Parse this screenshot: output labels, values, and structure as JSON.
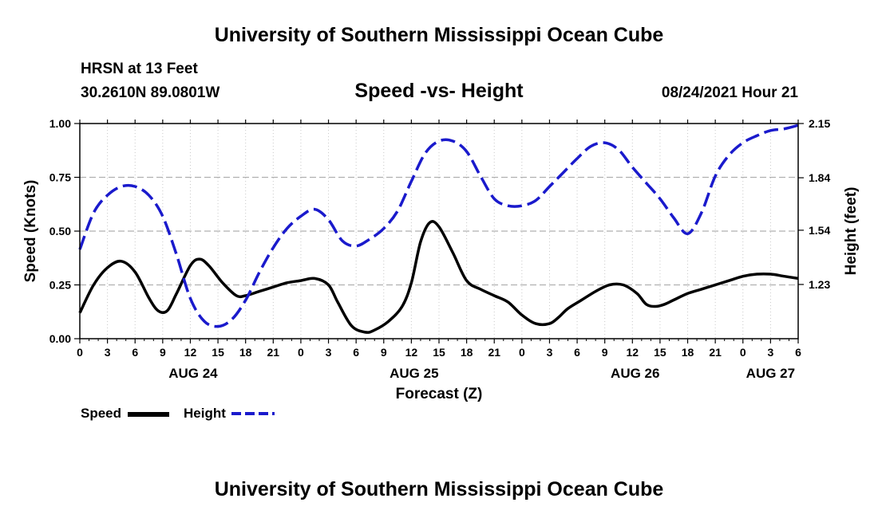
{
  "header": {
    "title_top": "University of Southern Mississippi Ocean Cube",
    "station": "HRSN at 13 Feet",
    "coords": "30.2610N  89.0801W",
    "date": "08/24/2021 Hour 21",
    "title_bottom": "University of Southern Mississippi Ocean Cube"
  },
  "legend": {
    "speed_label": "Speed",
    "height_label": "Height"
  },
  "colors": {
    "speed": "#000000",
    "height": "#1a1acc",
    "grid": "#b0b0b0"
  },
  "chart_data": {
    "type": "line",
    "title": "Speed -vs- Height",
    "xlabel": "Forecast (Z)",
    "ylabel": "Speed (Knots)",
    "ylabel_right": "Height (feet)",
    "xlim": [
      0,
      78
    ],
    "ylim": [
      0,
      1
    ],
    "ylim_right": [
      0.92,
      2.15
    ],
    "x_ticks": [
      0,
      3,
      6,
      9,
      12,
      15,
      18,
      21,
      24,
      27,
      30,
      33,
      36,
      39,
      42,
      45,
      48,
      51,
      54,
      57,
      60,
      63,
      66,
      69,
      72,
      75,
      78
    ],
    "x_tick_labels": [
      "0",
      "3",
      "6",
      "9",
      "12",
      "15",
      "18",
      "21",
      "0",
      "3",
      "6",
      "9",
      "12",
      "15",
      "18",
      "21",
      "0",
      "3",
      "6",
      "9",
      "12",
      "15",
      "18",
      "21",
      "0",
      "3",
      "6"
    ],
    "y_ticks": [
      0,
      0.25,
      0.5,
      0.75,
      1.0
    ],
    "y_tick_labels": [
      "0.00",
      "0.25",
      "0.50",
      "0.75",
      "1.00"
    ],
    "y_right_ticks": [
      1.23,
      1.54,
      1.84,
      2.15
    ],
    "y_right_tick_labels": [
      "1.23",
      "1.54",
      "1.84",
      "2.15"
    ],
    "date_labels": [
      {
        "label": "AUG 24",
        "x": 12.3
      },
      {
        "label": "AUG 25",
        "x": 36.3
      },
      {
        "label": "AUG 26",
        "x": 60.3
      },
      {
        "label": "AUG 27",
        "x": 75.0
      }
    ],
    "series": [
      {
        "name": "Speed",
        "axis": "left",
        "style": "solid",
        "x": [
          0,
          1.5,
          3,
          4.5,
          6,
          7.5,
          8.5,
          9.5,
          10.5,
          12,
          13,
          14,
          15.5,
          17,
          18,
          19.5,
          21,
          22.5,
          24,
          25.5,
          27,
          28,
          29.5,
          31,
          32,
          33.5,
          35,
          36,
          37,
          38,
          39,
          40.5,
          42,
          43.5,
          45,
          46.5,
          48,
          49.5,
          51,
          52,
          53,
          54.5,
          56,
          57.5,
          59,
          60.5,
          61.5,
          62.5,
          63.5,
          64.5,
          66,
          67.5,
          69,
          70.5,
          72,
          73.5,
          75,
          76.5,
          78
        ],
        "values": [
          0.12,
          0.25,
          0.33,
          0.36,
          0.31,
          0.19,
          0.13,
          0.13,
          0.21,
          0.34,
          0.37,
          0.34,
          0.26,
          0.2,
          0.2,
          0.22,
          0.24,
          0.26,
          0.27,
          0.28,
          0.25,
          0.17,
          0.06,
          0.03,
          0.04,
          0.08,
          0.15,
          0.26,
          0.45,
          0.54,
          0.52,
          0.4,
          0.27,
          0.23,
          0.2,
          0.17,
          0.11,
          0.07,
          0.07,
          0.1,
          0.14,
          0.18,
          0.22,
          0.25,
          0.25,
          0.21,
          0.16,
          0.15,
          0.16,
          0.18,
          0.21,
          0.23,
          0.25,
          0.27,
          0.29,
          0.3,
          0.3,
          0.29,
          0.28
        ]
      },
      {
        "name": "Height",
        "axis": "right",
        "style": "dashed",
        "x": [
          0,
          1.5,
          3,
          4.5,
          6,
          7.5,
          9,
          10.5,
          12,
          13.5,
          15,
          16.5,
          18,
          19.5,
          21,
          22.5,
          24,
          25.5,
          27,
          28.5,
          30,
          31.5,
          33,
          34.5,
          36,
          37.5,
          39,
          40.5,
          42,
          43.5,
          45,
          46.5,
          48,
          49.5,
          51,
          52.5,
          54,
          55.5,
          57,
          58.5,
          60,
          61.5,
          63,
          64.5,
          66,
          67.5,
          69,
          70.5,
          72,
          73.5,
          75,
          76.5,
          78
        ],
        "values": [
          1.43,
          1.64,
          1.74,
          1.79,
          1.79,
          1.74,
          1.62,
          1.4,
          1.15,
          1.02,
          0.99,
          1.03,
          1.14,
          1.3,
          1.44,
          1.55,
          1.62,
          1.66,
          1.6,
          1.48,
          1.45,
          1.49,
          1.55,
          1.65,
          1.82,
          1.98,
          2.05,
          2.05,
          1.99,
          1.85,
          1.72,
          1.68,
          1.68,
          1.71,
          1.79,
          1.87,
          1.95,
          2.02,
          2.04,
          2.0,
          1.9,
          1.81,
          1.72,
          1.61,
          1.52,
          1.64,
          1.85,
          1.97,
          2.04,
          2.08,
          2.11,
          2.12,
          2.14
        ]
      }
    ]
  }
}
